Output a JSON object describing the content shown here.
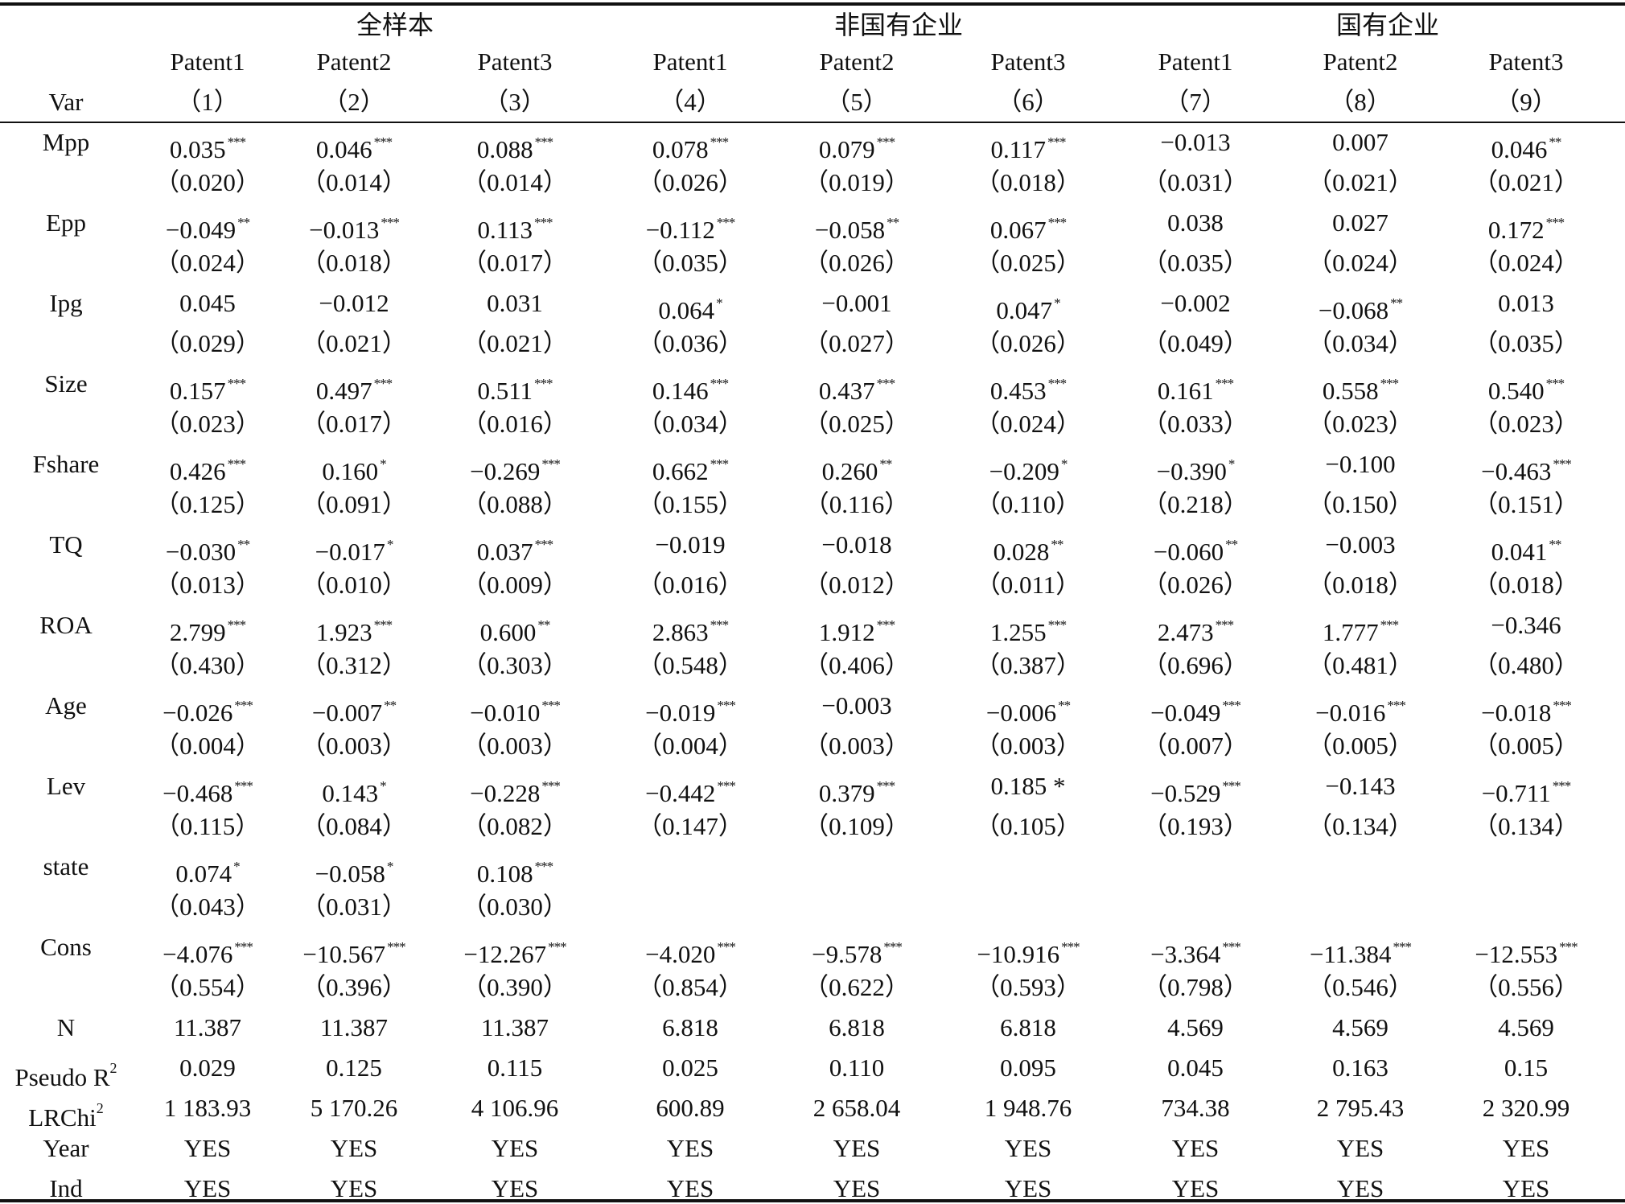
{
  "groups": [
    "全样本",
    "非国有企业",
    "国有企业"
  ],
  "var_header": "Var",
  "patents": [
    "Patent1",
    "Patent2",
    "Patent3",
    "Patent1",
    "Patent2",
    "Patent3",
    "Patent1",
    "Patent2",
    "Patent3"
  ],
  "col_numbers": [
    "（1）",
    "（2）",
    "（3）",
    "（4）",
    "（5）",
    "（6）",
    "（7）",
    "（8）",
    "（9）"
  ],
  "rows": [
    {
      "var": "Mpp",
      "coef": [
        "0.035",
        "0.046",
        "0.088",
        "0.078",
        "0.079",
        "0.117",
        "−0.013",
        "0.007",
        "0.046"
      ],
      "stars": [
        "***",
        "***",
        "***",
        "***",
        "***",
        "***",
        "",
        "",
        "**"
      ],
      "se": [
        "（0.020）",
        "（0.014）",
        "（0.014）",
        "（0.026）",
        "（0.019）",
        "（0.018）",
        "（0.031）",
        "（0.021）",
        "（0.021）"
      ]
    },
    {
      "var": "Epp",
      "coef": [
        "−0.049",
        "−0.013",
        "0.113",
        "−0.112",
        "−0.058",
        "0.067",
        "0.038",
        "0.027",
        "0.172"
      ],
      "stars": [
        "**",
        "***",
        "***",
        "***",
        "**",
        "***",
        "",
        "",
        "***"
      ],
      "se": [
        "（0.024）",
        "（0.018）",
        "（0.017）",
        "（0.035）",
        "（0.026）",
        "（0.025）",
        "（0.035）",
        "（0.024）",
        "（0.024）"
      ]
    },
    {
      "var": "Ipg",
      "coef": [
        "0.045",
        "−0.012",
        "0.031",
        "0.064",
        "−0.001",
        "0.047",
        "−0.002",
        "−0.068",
        "0.013"
      ],
      "stars": [
        "",
        "",
        "",
        "*",
        "",
        "*",
        "",
        "**",
        ""
      ],
      "se": [
        "（0.029）",
        "（0.021）",
        "（0.021）",
        "（0.036）",
        "（0.027）",
        "（0.026）",
        "（0.049）",
        "（0.034）",
        "（0.035）"
      ]
    },
    {
      "var": "Size",
      "coef": [
        "0.157",
        "0.497",
        "0.511",
        "0.146",
        "0.437",
        "0.453",
        "0.161",
        "0.558",
        "0.540"
      ],
      "stars": [
        "***",
        "***",
        "***",
        "***",
        "***",
        "***",
        "***",
        "***",
        "***"
      ],
      "se": [
        "（0.023）",
        "（0.017）",
        "（0.016）",
        "（0.034）",
        "（0.025）",
        "（0.024）",
        "（0.033）",
        "（0.023）",
        "（0.023）"
      ]
    },
    {
      "var": "Fshare",
      "coef": [
        "0.426",
        "0.160",
        "−0.269",
        "0.662",
        "0.260",
        "−0.209",
        "−0.390",
        "−0.100",
        "−0.463"
      ],
      "stars": [
        "***",
        "*",
        "***",
        "***",
        "**",
        "*",
        "*",
        "",
        "***"
      ],
      "se": [
        "（0.125）",
        "（0.091）",
        "（0.088）",
        "（0.155）",
        "（0.116）",
        "（0.110）",
        "（0.218）",
        "（0.150）",
        "（0.151）"
      ]
    },
    {
      "var": "TQ",
      "coef": [
        "−0.030",
        "−0.017",
        "0.037",
        "−0.019",
        "−0.018",
        "0.028",
        "−0.060",
        "−0.003",
        "0.041"
      ],
      "stars": [
        "**",
        "*",
        "***",
        "",
        "",
        "**",
        "**",
        "",
        "**"
      ],
      "se": [
        "（0.013）",
        "（0.010）",
        "（0.009）",
        "（0.016）",
        "（0.012）",
        "（0.011）",
        "（0.026）",
        "（0.018）",
        "（0.018）"
      ]
    },
    {
      "var": "ROA",
      "coef": [
        "2.799",
        "1.923",
        "0.600",
        "2.863",
        "1.912",
        "1.255",
        "2.473",
        "1.777",
        "−0.346"
      ],
      "stars": [
        "***",
        "***",
        "**",
        "***",
        "***",
        "***",
        "***",
        "***",
        ""
      ],
      "se": [
        "（0.430）",
        "（0.312）",
        "（0.303）",
        "（0.548）",
        "（0.406）",
        "（0.387）",
        "（0.696）",
        "（0.481）",
        "（0.480）"
      ]
    },
    {
      "var": "Age",
      "coef": [
        "−0.026",
        "−0.007",
        "−0.010",
        "−0.019",
        "−0.003",
        "−0.006",
        "−0.049",
        "−0.016",
        "−0.018"
      ],
      "stars": [
        "***",
        "**",
        "***",
        "***",
        "",
        "**",
        "***",
        "***",
        "***"
      ],
      "se": [
        "（0.004）",
        "（0.003）",
        "（0.003）",
        "（0.004）",
        "（0.003）",
        "（0.003）",
        "（0.007）",
        "（0.005）",
        "（0.005）"
      ]
    },
    {
      "var": "Lev",
      "coef": [
        "−0.468",
        "0.143",
        "−0.228",
        "−0.442",
        "0.379",
        "0.185 *",
        "−0.529",
        "−0.143",
        "−0.711"
      ],
      "stars": [
        "***",
        "*",
        "***",
        "***",
        "***",
        "",
        "***",
        "",
        "***"
      ],
      "se": [
        "（0.115）",
        "（0.084）",
        "（0.082）",
        "（0.147）",
        "（0.109）",
        "（0.105）",
        "（0.193）",
        "（0.134）",
        "（0.134）"
      ]
    },
    {
      "var": "state",
      "coef": [
        "0.074",
        "−0.058",
        "0.108",
        "",
        "",
        "",
        "",
        "",
        ""
      ],
      "stars": [
        "*",
        "*",
        "***",
        "",
        "",
        "",
        "",
        "",
        ""
      ],
      "se": [
        "（0.043）",
        "（0.031）",
        "（0.030）",
        "",
        "",
        "",
        "",
        "",
        ""
      ]
    },
    {
      "var": "Cons",
      "coef": [
        "−4.076",
        "−10.567",
        "−12.267",
        "−4.020",
        "−9.578",
        "−10.916",
        "−3.364",
        "−11.384",
        "−12.553"
      ],
      "stars": [
        "***",
        "***",
        "***",
        "***",
        "***",
        "***",
        "***",
        "***",
        "***"
      ],
      "se": [
        "（0.554）",
        "（0.396）",
        "（0.390）",
        "（0.854）",
        "（0.622）",
        "（0.593）",
        "（0.798）",
        "（0.546）",
        "（0.556）"
      ]
    }
  ],
  "stats": [
    {
      "label": "N",
      "values": [
        "11.387",
        "11.387",
        "11.387",
        "6.818",
        "6.818",
        "6.818",
        "4.569",
        "4.569",
        "4.569"
      ]
    },
    {
      "label": "Pseudo R",
      "sup": "2",
      "values": [
        "0.029",
        "0.125",
        "0.115",
        "0.025",
        "0.110",
        "0.095",
        "0.045",
        "0.163",
        "0.15"
      ]
    },
    {
      "label": "LRChi",
      "sup": "2",
      "values": [
        "1 183.93",
        "5 170.26",
        "4 106.96",
        "600.89",
        "2 658.04",
        "1 948.76",
        "734.38",
        "2 795.43",
        "2 320.99"
      ]
    },
    {
      "label": "Year",
      "values": [
        "YES",
        "YES",
        "YES",
        "YES",
        "YES",
        "YES",
        "YES",
        "YES",
        "YES"
      ]
    },
    {
      "label": "Ind",
      "values": [
        "YES",
        "YES",
        "YES",
        "YES",
        "YES",
        "YES",
        "YES",
        "YES",
        "YES"
      ]
    }
  ]
}
